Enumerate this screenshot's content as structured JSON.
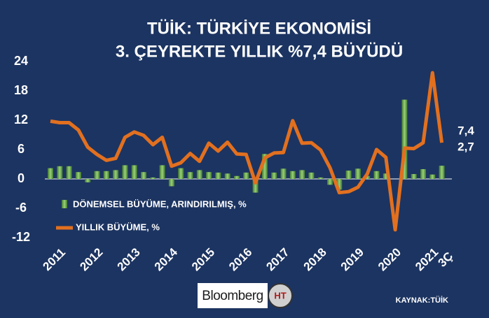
{
  "chart_data": {
    "type": "bar-line",
    "title": [
      "TÜİK: TÜRKİYE EKONOMİSİ",
      "3. ÇEYREKTE YILLIK %7,4 BÜYÜDÜ"
    ],
    "categories": [
      "2011",
      null,
      null,
      null,
      "2012",
      null,
      null,
      null,
      "2013",
      null,
      null,
      null,
      "2014",
      null,
      null,
      null,
      "2015",
      null,
      null,
      null,
      "2016",
      null,
      null,
      null,
      "2017",
      null,
      null,
      null,
      "2018",
      null,
      null,
      null,
      "2019",
      null,
      null,
      null,
      "2020",
      null,
      null,
      null,
      "2021",
      null,
      "3Ç"
    ],
    "series": [
      {
        "name": "DÖNEMSEL BÜYÜME, ARINDIRILMIŞ, %",
        "type": "bar",
        "color": "#6aa84f",
        "values": [
          2.2,
          2.6,
          2.6,
          1.4,
          -0.7,
          1.6,
          1.6,
          1.8,
          2.8,
          2.8,
          1.4,
          0.3,
          2.8,
          -1.5,
          2.2,
          1.4,
          1.8,
          1.4,
          1.3,
          1.1,
          0.6,
          1.3,
          -2.8,
          5.1,
          1.3,
          2.1,
          1.6,
          1.8,
          1.3,
          0.3,
          -1.2,
          -2.2,
          1.7,
          2.1,
          0.6,
          1.6,
          1.1,
          null,
          16.2,
          1.0,
          2.0,
          0.9,
          2.7
        ],
        "value_labels": [
          null,
          null,
          null,
          null,
          null,
          null,
          null,
          null,
          null,
          null,
          null,
          null,
          null,
          null,
          null,
          null,
          null,
          null,
          null,
          null,
          null,
          null,
          null,
          null,
          null,
          null,
          null,
          null,
          null,
          null,
          null,
          null,
          null,
          null,
          null,
          null,
          null,
          null,
          null,
          null,
          null,
          null,
          "2,7"
        ]
      },
      {
        "name": "YILLIK BÜYÜME,  %",
        "type": "line",
        "color": "#e2701f",
        "values": [
          11.8,
          11.5,
          11.5,
          10.0,
          6.5,
          5.0,
          3.8,
          4.2,
          8.5,
          9.6,
          8.9,
          7.0,
          8.5,
          2.6,
          3.3,
          5.2,
          3.6,
          7.3,
          5.7,
          7.5,
          5.1,
          5.0,
          -0.8,
          4.3,
          5.3,
          5.4,
          11.9,
          7.3,
          7.4,
          5.9,
          2.3,
          -2.8,
          -2.6,
          -1.7,
          1.0,
          6.0,
          4.4,
          -10.4,
          6.3,
          6.2,
          7.4,
          21.7,
          7.4
        ],
        "value_labels": [
          null,
          null,
          null,
          null,
          null,
          null,
          null,
          null,
          null,
          null,
          null,
          null,
          null,
          null,
          null,
          null,
          null,
          null,
          null,
          null,
          null,
          null,
          null,
          null,
          null,
          null,
          null,
          null,
          null,
          null,
          null,
          null,
          null,
          null,
          null,
          null,
          null,
          null,
          null,
          null,
          null,
          null,
          "7,4"
        ]
      }
    ],
    "ylim": [
      -12,
      24
    ],
    "yticks": [
      -12,
      -6,
      0,
      6,
      12,
      18,
      24
    ],
    "source": "KAYNAK:TÜİK",
    "brand": "Bloomberg",
    "brand_mark": "HT"
  }
}
